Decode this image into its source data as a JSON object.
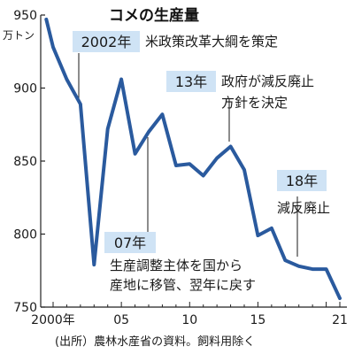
{
  "chart_data": {
    "type": "line",
    "title": "コメの生産量",
    "ylabel": "万トン",
    "source": "(出所）農林水産省の資料。飼料用除く",
    "x_tick_labels": [
      "2000年",
      "05",
      "10",
      "15",
      "21"
    ],
    "y_ticks": [
      750,
      800,
      850,
      900,
      950
    ],
    "xlim": [
      2000,
      2021
    ],
    "ylim": [
      750,
      950
    ],
    "grid": false,
    "x": [
      1999.5,
      2000,
      2001,
      2002,
      2003,
      2004,
      2005,
      2006,
      2007,
      2008,
      2009,
      2010,
      2011,
      2012,
      2013,
      2014,
      2015,
      2016,
      2017,
      2018,
      2019,
      2020,
      2021
    ],
    "y": [
      947,
      928,
      906,
      889,
      779,
      872,
      906,
      855,
      870,
      882,
      847,
      848,
      840,
      852,
      860,
      844,
      799,
      804,
      782,
      778,
      776,
      776,
      756
    ],
    "line_color": "#2a5a9e",
    "annotations": [
      {
        "year": 2002,
        "tag": "2002年",
        "lines": [
          "米政策改革大綱を策定"
        ]
      },
      {
        "year": 2013,
        "tag": "13年",
        "lines": [
          "政府が減反廃止",
          "方針を決定"
        ]
      },
      {
        "year": 2007,
        "tag": "07年",
        "lines": [
          "生産調整主体を国から",
          "産地に移管、翌年に戻す"
        ]
      },
      {
        "year": 2018,
        "tag": "18年",
        "lines": [
          "減反廃止"
        ]
      }
    ],
    "tag_background": "#cfe3f5"
  }
}
